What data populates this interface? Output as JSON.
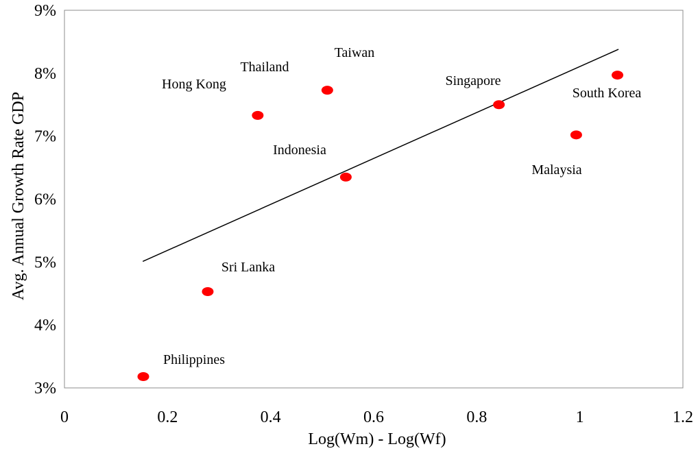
{
  "chart_data": {
    "type": "scatter",
    "title": "",
    "xlabel": "Log(Wm) - Log(Wf)",
    "ylabel": "Avg. Annual Growth Rate GDP",
    "xlim": [
      0,
      1.2
    ],
    "ylim": [
      0.03,
      0.09
    ],
    "x_ticks": [
      0,
      0.2,
      0.4,
      0.6,
      0.8,
      1,
      1.2
    ],
    "x_tick_labels": [
      "0",
      "0.2",
      "0.4",
      "0.6",
      "0.8",
      "1",
      "1.2"
    ],
    "y_ticks": [
      0.03,
      0.04,
      0.05,
      0.06,
      0.07,
      0.08,
      0.09
    ],
    "y_tick_labels": [
      "3%",
      "4%",
      "5%",
      "6%",
      "7%",
      "8%",
      "9%"
    ],
    "grid": false,
    "legend": "none",
    "marker_color": "#ff0000",
    "trendline": {
      "x": [
        0.152,
        1.075
      ],
      "y": [
        0.0501,
        0.0838
      ],
      "color": "#000000"
    },
    "points": [
      {
        "label": "Philippines",
        "x": 0.153,
        "y": 0.0318
      },
      {
        "label": "Sri Lanka",
        "x": 0.278,
        "y": 0.0453
      },
      {
        "label": "Hong Kong",
        "x": 0.375,
        "y": 0.0733
      },
      {
        "label": "Thailand",
        "x": 0.51,
        "y": 0.0773
      },
      {
        "label": "Indonesia",
        "x": 0.546,
        "y": 0.0635
      },
      {
        "label": "Taiwan",
        "x": 0.51,
        "y": 0.0773
      },
      {
        "label": "Singapore",
        "x": 0.843,
        "y": 0.075
      },
      {
        "label": "Malaysia",
        "x": 0.993,
        "y": 0.0702
      },
      {
        "label": "South Korea",
        "x": 1.073,
        "y": 0.0797
      }
    ]
  }
}
